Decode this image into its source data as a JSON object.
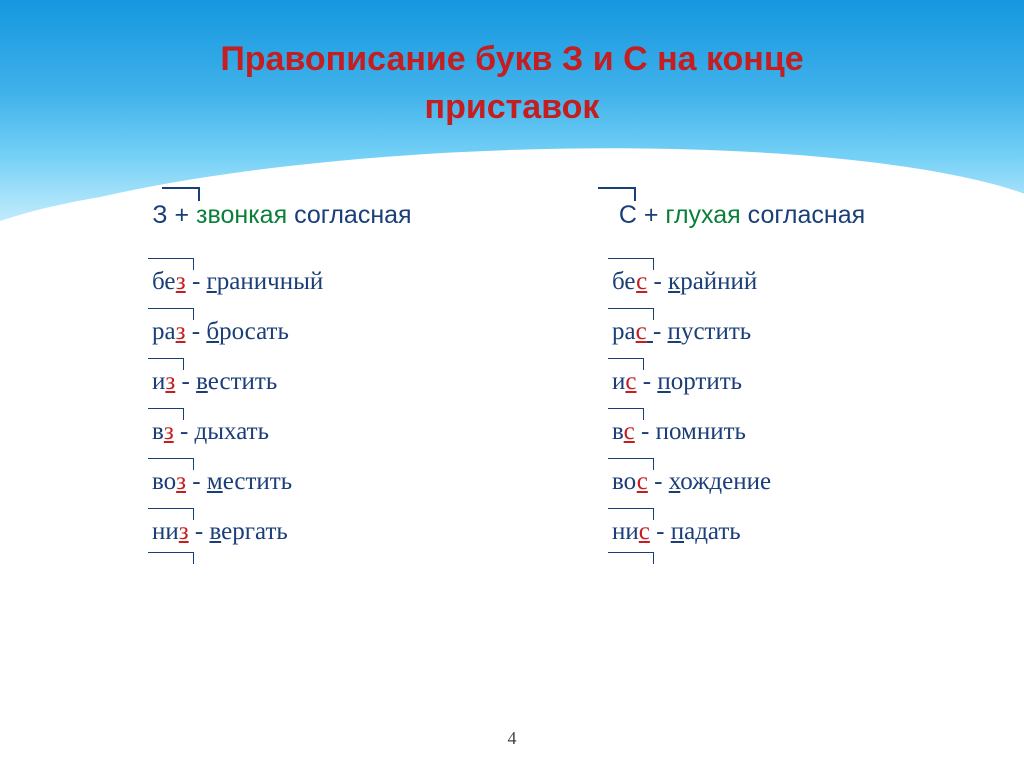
{
  "title_line1": "Правописание букв З и С на конце",
  "title_line2": "приставок",
  "page_number": "4",
  "colors": {
    "title": "#c41e21",
    "navy": "#1a3e78",
    "red": "#c41e21",
    "green": "#0a7f3a",
    "sky_top": "#1597df",
    "sky_bottom": "#e6f6fe",
    "background": "#ffffff"
  },
  "typography": {
    "title_fontsize": 34,
    "body_fontsize": 25,
    "title_weight": "bold",
    "title_family": "Arial",
    "body_family": "Times New Roman"
  },
  "left": {
    "rule_letter": "З",
    "rule_plus": " + ",
    "rule_voicing": "звонкая",
    "rule_tail": " согласная",
    "examples": [
      {
        "prefix_base": "бе",
        "prefix_end": "з",
        "root_hl": "г",
        "root_tail": "раничный"
      },
      {
        "prefix_base": "ра",
        "prefix_end": "з",
        "root_hl": "б",
        "root_tail": "росать"
      },
      {
        "prefix_base": "и",
        "prefix_end": "з",
        "root_hl": "в",
        "root_tail": "естить"
      },
      {
        "prefix_base": "в",
        "prefix_end": "з",
        "root_hl": "",
        "root_tail": "дыхать"
      },
      {
        "prefix_base": "во",
        "prefix_end": "з",
        "root_hl": "м",
        "root_tail": "естить"
      },
      {
        "prefix_base": "ни",
        "prefix_end": "з",
        "root_hl": "в",
        "root_tail": "ергать"
      }
    ]
  },
  "right": {
    "rule_letter": "С",
    "rule_plus": " + ",
    "rule_voicing": "глухая",
    "rule_tail": " согласная",
    "examples": [
      {
        "prefix_base": "бе",
        "prefix_end": "с",
        "root_hl": "к",
        "root_tail": "райний"
      },
      {
        "prefix_base": "ра",
        "prefix_end": "с",
        "root_hl": "п",
        "root_tail": "устить"
      },
      {
        "prefix_base": "и",
        "prefix_end": "с",
        "root_hl": "п",
        "root_tail": "ортить"
      },
      {
        "prefix_base": "в",
        "prefix_end": "с",
        "root_hl": "",
        "root_tail": "помнить"
      },
      {
        "prefix_base": "во",
        "prefix_end": "с",
        "root_hl": "х",
        "root_tail": "ождение"
      },
      {
        "prefix_base": "ни",
        "prefix_end": "с",
        "root_hl": "п",
        "root_tail": "адать"
      }
    ]
  }
}
